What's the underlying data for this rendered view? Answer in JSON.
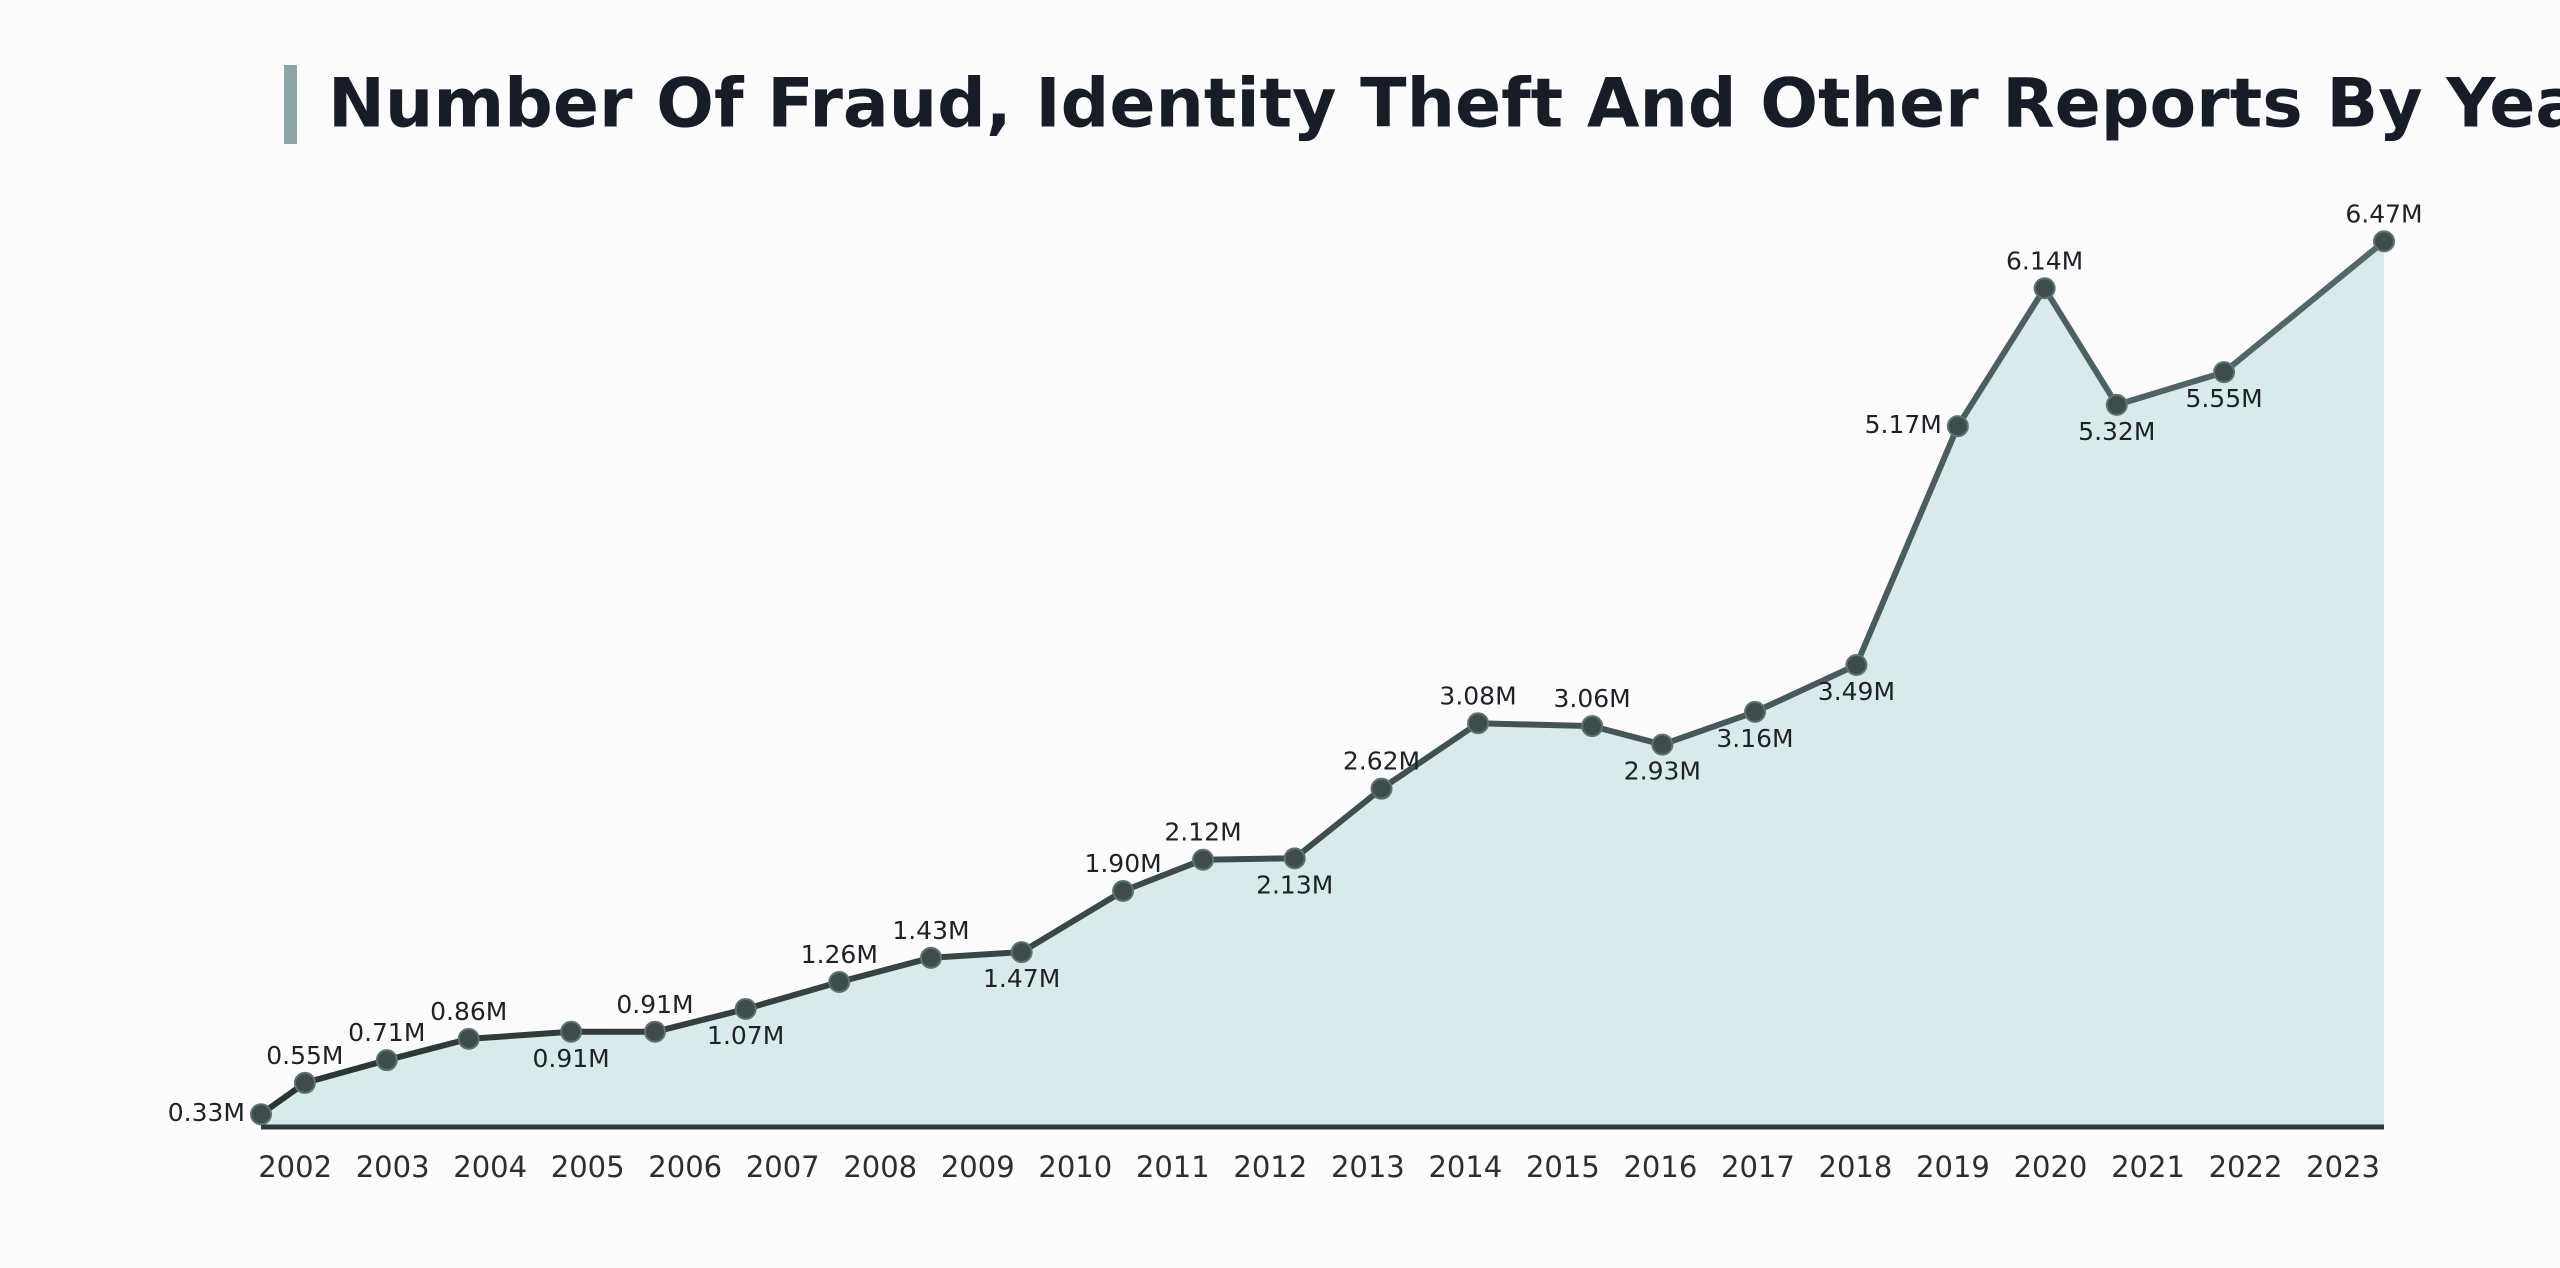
{
  "chart_data": {
    "type": "area-line",
    "title": "Number Of Fraud, Identity Theft And Other Reports By Year",
    "x": [
      2001.65,
      2002.1,
      2002.94,
      2003.78,
      2004.83,
      2005.69,
      2006.62,
      2007.58,
      2008.52,
      2009.45,
      2010.49,
      2011.31,
      2012.25,
      2013.14,
      2014.13,
      2015.3,
      2016.02,
      2016.97,
      2018.01,
      2019.05,
      2019.94,
      2020.68,
      2021.78,
      2023.42
    ],
    "values": [
      0.33,
      0.55,
      0.71,
      0.86,
      0.91,
      0.91,
      1.07,
      1.26,
      1.43,
      1.47,
      1.9,
      2.12,
      2.13,
      2.62,
      3.08,
      3.06,
      2.93,
      3.16,
      3.49,
      5.17,
      6.14,
      5.32,
      5.55,
      6.47
    ],
    "value_labels": [
      "0.33M",
      "0.55M",
      "0.71M",
      "0.86M",
      "0.91M",
      "0.91M",
      "1.07M",
      "1.26M",
      "1.43M",
      "1.47M",
      "1.90M",
      "2.12M",
      "2.13M",
      "2.62M",
      "3.08M",
      "3.06M",
      "2.93M",
      "3.16M",
      "3.49M",
      "5.17M",
      "6.14M",
      "5.32M",
      "5.55M",
      "6.47M"
    ],
    "xlim": [
      2001.65,
      2023.42
    ],
    "xticks": [
      2002,
      2003,
      2004,
      2005,
      2006,
      2007,
      2008,
      2009,
      2010,
      2011,
      2012,
      2013,
      2014,
      2015,
      2016,
      2017,
      2018,
      2019,
      2020,
      2021,
      2022,
      2023
    ],
    "ylim": [
      0.24,
      6.55
    ],
    "color": "#52696a",
    "fill_color": "#d8eae9",
    "grid": false
  }
}
